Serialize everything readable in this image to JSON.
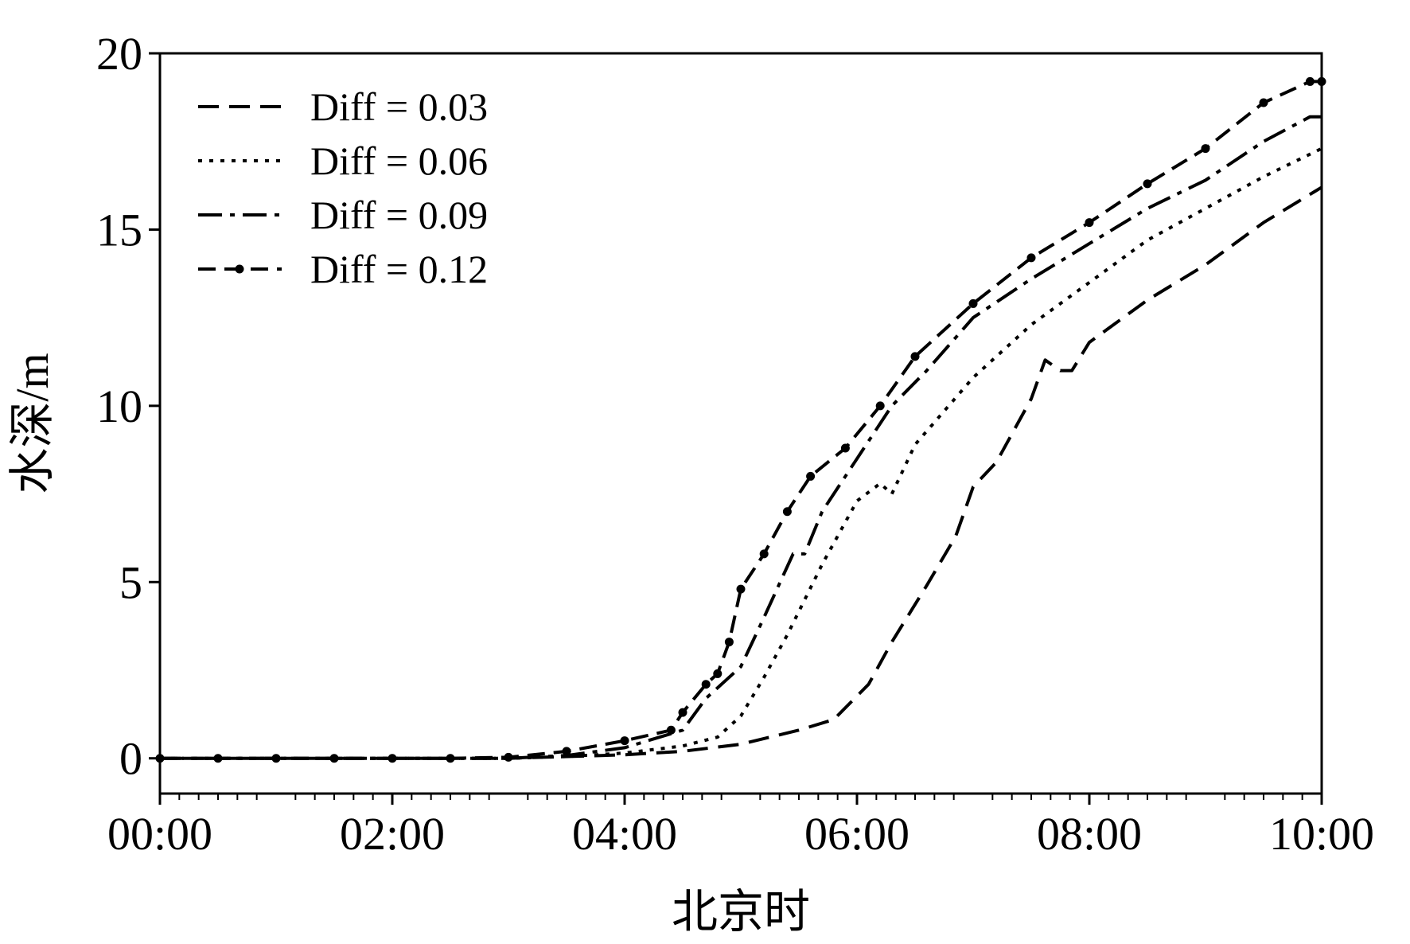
{
  "chart_data": {
    "type": "line",
    "title": "",
    "xlabel": "北京时",
    "ylabel": "水深/m",
    "x_ticks": [
      "00:00",
      "02:00",
      "04:00",
      "06:00",
      "08:00",
      "10:00"
    ],
    "y_ticks": [
      "0",
      "5",
      "10",
      "15",
      "20"
    ],
    "xlim_hours": [
      0,
      10
    ],
    "ylim": [
      -1,
      20
    ],
    "grid": false,
    "legend_position": "upper-left",
    "series": [
      {
        "name": "Diff = 0.03",
        "style": "dashed",
        "color": "#000000",
        "x": [
          0,
          0.5,
          1,
          1.5,
          2,
          2.5,
          3,
          3.5,
          4,
          4.5,
          5,
          5.5,
          5.8,
          6.1,
          6.3,
          6.6,
          6.85,
          7.0,
          7.2,
          7.5,
          7.62,
          7.75,
          7.85,
          8.0,
          8.5,
          9.0,
          9.5,
          10.0
        ],
        "y": [
          0,
          0,
          0,
          0,
          0,
          0,
          0,
          0.05,
          0.1,
          0.2,
          0.4,
          0.8,
          1.1,
          2.1,
          3.3,
          4.9,
          6.3,
          7.7,
          8.4,
          10.2,
          11.3,
          11.0,
          11.0,
          11.8,
          13.0,
          14.0,
          15.2,
          16.2
        ]
      },
      {
        "name": "Diff = 0.06",
        "style": "dotted",
        "color": "#000000",
        "x": [
          0,
          0.5,
          1,
          1.5,
          2,
          2.5,
          3,
          3.5,
          4,
          4.5,
          4.8,
          5.0,
          5.2,
          5.4,
          5.7,
          6.0,
          6.2,
          6.3,
          6.5,
          7.0,
          7.5,
          8.0,
          8.5,
          9.0,
          9.5,
          10.0
        ],
        "y": [
          0,
          0,
          0,
          0,
          0,
          0,
          0,
          0.05,
          0.15,
          0.35,
          0.6,
          1.2,
          2.3,
          3.5,
          5.5,
          7.3,
          7.8,
          7.5,
          8.9,
          10.8,
          12.3,
          13.5,
          14.7,
          15.6,
          16.5,
          17.3
        ]
      },
      {
        "name": "Diff = 0.09",
        "style": "dashdot",
        "color": "#000000",
        "x": [
          0,
          0.5,
          1,
          1.5,
          2,
          2.5,
          3,
          3.5,
          4,
          4.5,
          4.7,
          5.0,
          5.2,
          5.45,
          5.55,
          5.7,
          6.0,
          6.3,
          6.6,
          7.0,
          7.5,
          8.0,
          8.5,
          9.0,
          9.5,
          9.9,
          10.0
        ],
        "y": [
          0,
          0,
          0,
          0,
          0,
          0,
          0,
          0.08,
          0.3,
          0.8,
          1.7,
          2.6,
          4.0,
          5.8,
          5.8,
          7.0,
          8.5,
          10.0,
          11.0,
          12.5,
          13.6,
          14.6,
          15.6,
          16.4,
          17.5,
          18.2,
          18.2
        ]
      },
      {
        "name": "Diff = 0.12",
        "style": "dashed-marker",
        "color": "#000000",
        "x": [
          0,
          0.5,
          1,
          1.5,
          2,
          2.5,
          3,
          3.5,
          4,
          4.4,
          4.5,
          4.7,
          4.8,
          4.9,
          5.0,
          5.2,
          5.4,
          5.6,
          5.9,
          6.2,
          6.5,
          7.0,
          7.5,
          8.0,
          8.5,
          9.0,
          9.5,
          9.9,
          10.0
        ],
        "y": [
          0,
          0,
          0,
          0,
          0,
          0,
          0.03,
          0.2,
          0.5,
          0.8,
          1.3,
          2.1,
          2.4,
          3.3,
          4.8,
          5.8,
          7.0,
          8.0,
          8.8,
          10.0,
          11.4,
          12.9,
          14.2,
          15.2,
          16.3,
          17.3,
          18.6,
          19.2,
          19.2
        ]
      }
    ]
  }
}
